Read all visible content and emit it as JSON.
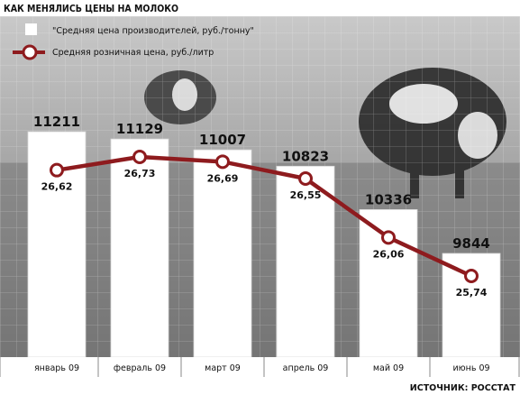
{
  "colors": {
    "line": "#8e1b1e",
    "bar": "#ffffff",
    "bar_border": "#d8d8d8",
    "text": "#111111"
  },
  "chart_data": {
    "type": "bar",
    "title": "КАК МЕНЯЛИСЬ ЦЕНЫ НА МОЛОКО",
    "source": "ИСТОЧНИК: РОССТАТ",
    "categories": [
      "январь 09",
      "февраль 09",
      "март 09",
      "апрель 09",
      "май 09",
      "июнь 09"
    ],
    "legend_position": "top-left",
    "series": [
      {
        "name": "\"Средняя цена производителей, руб./тонну\"",
        "type": "bar",
        "values": [
          11211,
          11129,
          11007,
          10823,
          10336,
          9844
        ],
        "labels": [
          "11211",
          "11129",
          "11007",
          "10823",
          "10336",
          "9844"
        ]
      },
      {
        "name": "Средняя розничная цена, руб./литр",
        "type": "line",
        "values": [
          26.62,
          26.73,
          26.69,
          26.55,
          26.06,
          25.74
        ],
        "labels": [
          "26,62",
          "26,73",
          "26,69",
          "26,55",
          "26,06",
          "25,74"
        ]
      }
    ]
  }
}
